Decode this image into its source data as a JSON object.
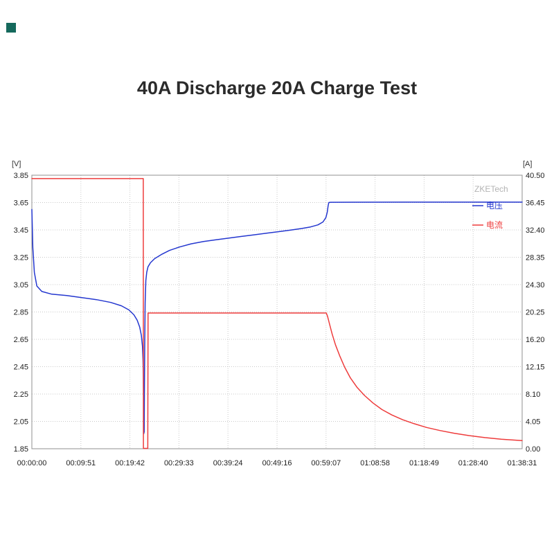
{
  "decorations": {
    "corner_mark_color": "#15695c"
  },
  "chart_data": {
    "type": "line",
    "title": "40A Discharge 20A Charge Test",
    "watermark": "ZKETech",
    "grid": true,
    "legend_position": "top-right",
    "x_axis": {
      "range_seconds": [
        0,
        5911
      ],
      "ticks_seconds": [
        0,
        591,
        1182,
        1773,
        2364,
        2956,
        3547,
        4138,
        4729,
        5320,
        5911
      ],
      "tick_labels": [
        "00:00:00",
        "00:09:51",
        "00:19:42",
        "00:29:33",
        "00:39:24",
        "00:49:16",
        "00:59:07",
        "01:08:58",
        "01:18:49",
        "01:28:40",
        "01:38:31"
      ]
    },
    "y_left": {
      "unit_label": "[V]",
      "min": 1.85,
      "max": 3.85,
      "tick_labels": [
        "3.85",
        "3.65",
        "3.45",
        "3.25",
        "3.05",
        "2.85",
        "2.65",
        "2.45",
        "2.25",
        "2.05",
        "1.85"
      ]
    },
    "y_right": {
      "unit_label": "[A]",
      "min": 0.0,
      "max": 40.5,
      "tick_labels": [
        "40.50",
        "36.45",
        "32.40",
        "28.35",
        "24.30",
        "20.25",
        "16.20",
        "12.15",
        "8.10",
        "4.05",
        "0.00"
      ]
    },
    "series": [
      {
        "key": "voltage",
        "name": "电压",
        "axis": "left",
        "color": "#2336cf",
        "points": [
          [
            0,
            3.6
          ],
          [
            12,
            3.32
          ],
          [
            30,
            3.14
          ],
          [
            60,
            3.04
          ],
          [
            120,
            3.0
          ],
          [
            240,
            2.98
          ],
          [
            420,
            2.97
          ],
          [
            600,
            2.955
          ],
          [
            780,
            2.94
          ],
          [
            950,
            2.92
          ],
          [
            1080,
            2.895
          ],
          [
            1170,
            2.865
          ],
          [
            1230,
            2.83
          ],
          [
            1270,
            2.79
          ],
          [
            1300,
            2.74
          ],
          [
            1320,
            2.68
          ],
          [
            1333,
            2.6
          ],
          [
            1340,
            2.5
          ],
          [
            1344,
            2.38
          ],
          [
            1347,
            2.22
          ],
          [
            1349,
            2.05
          ],
          [
            1350,
            1.96
          ],
          [
            1352,
            2.12
          ],
          [
            1354,
            1.97
          ],
          [
            1357,
            2.25
          ],
          [
            1361,
            2.6
          ],
          [
            1366,
            2.92
          ],
          [
            1374,
            3.08
          ],
          [
            1385,
            3.14
          ],
          [
            1400,
            3.18
          ],
          [
            1430,
            3.21
          ],
          [
            1480,
            3.24
          ],
          [
            1560,
            3.27
          ],
          [
            1660,
            3.3
          ],
          [
            1780,
            3.325
          ],
          [
            1920,
            3.348
          ],
          [
            2070,
            3.365
          ],
          [
            2220,
            3.378
          ],
          [
            2370,
            3.39
          ],
          [
            2520,
            3.402
          ],
          [
            2670,
            3.413
          ],
          [
            2820,
            3.425
          ],
          [
            2970,
            3.437
          ],
          [
            3120,
            3.449
          ],
          [
            3250,
            3.46
          ],
          [
            3360,
            3.472
          ],
          [
            3450,
            3.487
          ],
          [
            3510,
            3.508
          ],
          [
            3545,
            3.54
          ],
          [
            3562,
            3.58
          ],
          [
            3572,
            3.625
          ],
          [
            3580,
            3.65
          ],
          [
            3600,
            3.652
          ],
          [
            4500,
            3.653
          ],
          [
            5911,
            3.653
          ]
        ]
      },
      {
        "key": "current",
        "name": "电流",
        "axis": "right",
        "color": "#ee3b3b",
        "points": [
          [
            0,
            40.0
          ],
          [
            1343,
            40.0
          ],
          [
            1345,
            0.05
          ],
          [
            1398,
            0.05
          ],
          [
            1401,
            20.1
          ],
          [
            3550,
            20.1
          ],
          [
            3565,
            19.6
          ],
          [
            3590,
            18.4
          ],
          [
            3620,
            17.0
          ],
          [
            3660,
            15.4
          ],
          [
            3710,
            13.8
          ],
          [
            3770,
            12.1
          ],
          [
            3840,
            10.5
          ],
          [
            3920,
            9.1
          ],
          [
            4010,
            7.9
          ],
          [
            4110,
            6.8
          ],
          [
            4220,
            5.8
          ],
          [
            4340,
            5.0
          ],
          [
            4470,
            4.3
          ],
          [
            4610,
            3.7
          ],
          [
            4760,
            3.15
          ],
          [
            4920,
            2.7
          ],
          [
            5090,
            2.3
          ],
          [
            5270,
            1.95
          ],
          [
            5460,
            1.65
          ],
          [
            5660,
            1.4
          ],
          [
            5911,
            1.2
          ]
        ]
      }
    ]
  }
}
